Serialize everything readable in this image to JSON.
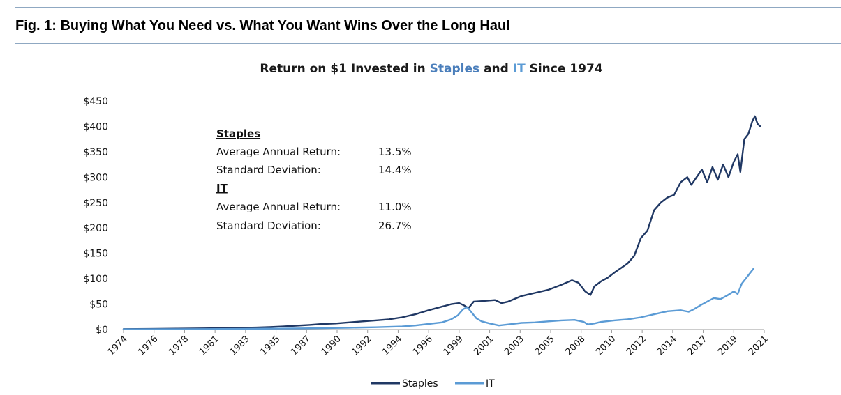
{
  "figure": {
    "title": "Fig. 1: Buying What You Need vs. What You Want Wins Over the Long Haul"
  },
  "chart_data": {
    "type": "line",
    "title_parts": [
      "Return on $1 Invested in ",
      "Staples",
      " and ",
      "IT",
      " Since 1974"
    ],
    "xlabel": "",
    "ylabel": "",
    "x_range": [
      1974,
      2022.3
    ],
    "ylim": [
      0,
      450
    ],
    "y_ticks": [
      0,
      50,
      100,
      150,
      200,
      250,
      300,
      350,
      400,
      450
    ],
    "y_tick_labels": [
      "$0",
      "$50",
      "$100",
      "$150",
      "$200",
      "$250",
      "$300",
      "$350",
      "$400",
      "$450"
    ],
    "x_tick_labels": [
      "1974",
      "1976",
      "1978",
      "1981",
      "1983",
      "1985",
      "1987",
      "1990",
      "1992",
      "1994",
      "1996",
      "1999",
      "2001",
      "2003",
      "2005",
      "2008",
      "2010",
      "2012",
      "2014",
      "2017",
      "2019",
      "2021"
    ],
    "grid": false,
    "legend_position": "bottom",
    "colors": {
      "Staples": "#203864",
      "IT": "#5b9bd5"
    },
    "series": [
      {
        "name": "Staples",
        "x": [
          1974.0,
          1976.0,
          1978.0,
          1980.0,
          1982.0,
          1984.0,
          1985.0,
          1986.0,
          1987.0,
          1988.0,
          1989.0,
          1990.0,
          1991.0,
          1992.0,
          1993.0,
          1994.0,
          1995.0,
          1996.0,
          1997.0,
          1998.0,
          1998.7,
          1999.3,
          1999.7,
          2000.0,
          2000.4,
          2001.0,
          2002.0,
          2002.5,
          2003.0,
          2004.0,
          2005.0,
          2006.0,
          2007.0,
          2007.8,
          2008.3,
          2008.8,
          2009.2,
          2009.5,
          2010.0,
          2010.5,
          2011.0,
          2012.0,
          2012.5,
          2013.0,
          2013.5,
          2014.0,
          2014.5,
          2015.0,
          2015.5,
          2016.0,
          2016.5,
          2016.8,
          2017.2,
          2017.6,
          2018.0,
          2018.4,
          2018.8,
          2019.2,
          2019.6,
          2020.0,
          2020.3,
          2020.5,
          2020.8,
          2021.1,
          2021.4,
          2021.6,
          2021.8,
          2022.0
        ],
        "values": [
          1,
          1.3,
          1.8,
          2.3,
          3,
          4,
          5,
          6,
          7.5,
          9,
          11,
          12,
          14,
          16,
          18,
          20,
          24,
          30,
          38,
          45,
          50,
          52,
          47,
          42,
          55,
          56,
          58,
          52,
          55,
          66,
          72,
          78,
          88,
          97,
          92,
          75,
          68,
          85,
          95,
          102,
          112,
          130,
          145,
          180,
          195,
          235,
          250,
          260,
          265,
          290,
          300,
          285,
          300,
          315,
          290,
          320,
          295,
          325,
          300,
          330,
          345,
          310,
          375,
          385,
          410,
          420,
          405,
          400
        ]
      },
      {
        "name": "IT",
        "x": [
          1974.0,
          1977.0,
          1980.0,
          1983.0,
          1985.0,
          1987.0,
          1989.0,
          1991.0,
          1993.0,
          1995.0,
          1996.0,
          1997.0,
          1998.0,
          1998.7,
          1999.2,
          1999.6,
          1999.9,
          2000.2,
          2000.6,
          2001.0,
          2001.6,
          2002.3,
          2003.0,
          2004.0,
          2005.0,
          2006.0,
          2007.0,
          2008.0,
          2008.7,
          2009.0,
          2009.5,
          2010.0,
          2011.0,
          2012.0,
          2013.0,
          2014.0,
          2015.0,
          2016.0,
          2016.6,
          2017.0,
          2017.5,
          2018.0,
          2018.5,
          2019.0,
          2019.5,
          2020.0,
          2020.3,
          2020.6,
          2020.9,
          2021.2,
          2021.5
        ],
        "values": [
          0.5,
          0.7,
          1,
          1.3,
          1.8,
          2.2,
          2.8,
          3.5,
          4.5,
          6,
          8,
          11,
          14,
          20,
          28,
          40,
          44,
          35,
          22,
          16,
          12,
          8,
          10,
          13,
          14,
          16,
          18,
          19,
          15,
          10,
          12,
          15,
          18,
          20,
          24,
          30,
          36,
          38,
          35,
          40,
          48,
          55,
          62,
          60,
          67,
          75,
          70,
          90,
          100,
          110,
          120
        ]
      }
    ],
    "stats_box": {
      "staples_header": "Staples",
      "it_header": "IT",
      "rows": [
        {
          "label": "Average Annual Return:",
          "value": "13.5%"
        },
        {
          "label": "Standard Deviation:",
          "value": "14.4%"
        },
        {
          "label": "Average Annual Return:",
          "value": "11.0%"
        },
        {
          "label": "Standard Deviation:",
          "value": "26.7%"
        }
      ]
    }
  }
}
